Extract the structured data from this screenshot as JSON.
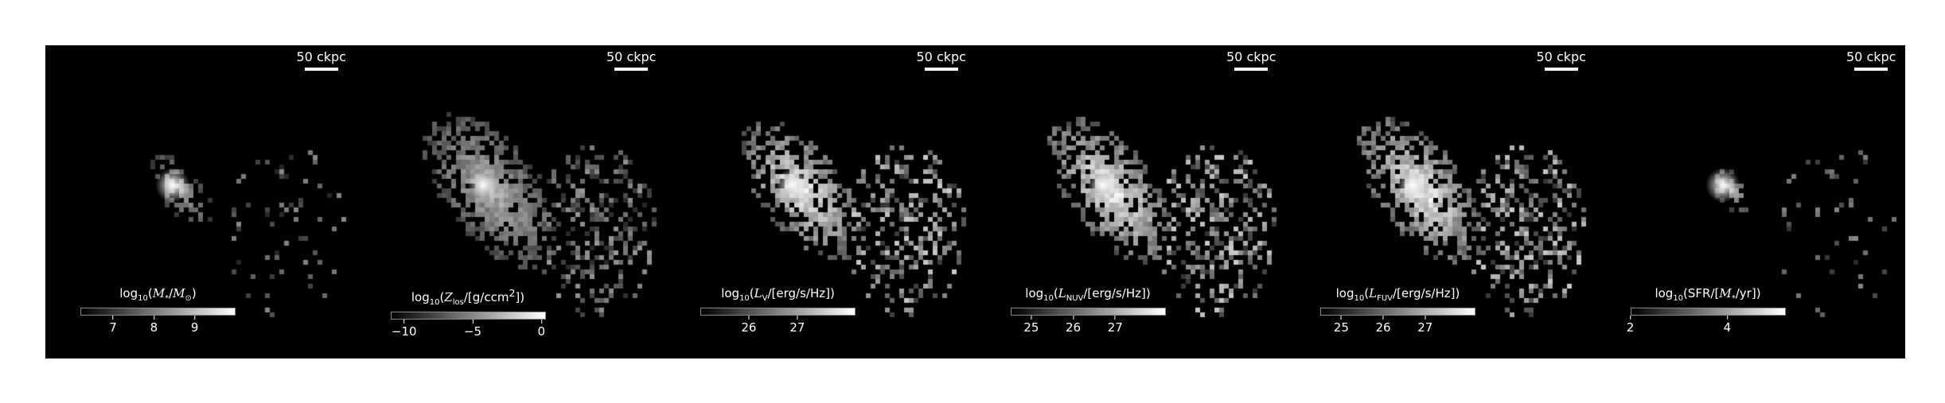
{
  "panels": [
    {
      "id": "mass",
      "scalebar": "50 ckpc",
      "cbar_title_html": "log<sub>10</sub>(<i>M</i><sub>*</sub>/<i>M</i><sub>⊙</sub>)",
      "cbar_range": [
        6.2,
        10.0
      ],
      "ticks": [
        "7",
        "8",
        "9"
      ],
      "tick_values": [
        7,
        8,
        9
      ]
    },
    {
      "id": "metallicity",
      "scalebar": "50 ckpc",
      "cbar_title_html": "log<sub>10</sub>(<i>Z</i><sub>los</sub>/[g/ccm<sup>2</sup>])",
      "cbar_range": [
        -11,
        0.3
      ],
      "ticks": [
        "−10",
        "−5",
        "0"
      ],
      "tick_values": [
        -10,
        -5,
        0
      ]
    },
    {
      "id": "lv",
      "scalebar": "50 ckpc",
      "cbar_title_html": "log<sub>10</sub>(<i>L</i><sub>V</sub>/[erg/s/Hz])",
      "cbar_range": [
        25.0,
        28.2
      ],
      "ticks": [
        "26",
        "27"
      ],
      "tick_values": [
        26,
        27
      ]
    },
    {
      "id": "lnuv",
      "scalebar": "50 ckpc",
      "cbar_title_html": "log<sub>10</sub>(<i>L</i><sub>NUV</sub>/[erg/s/Hz])",
      "cbar_range": [
        24.5,
        28.2
      ],
      "ticks": [
        "25",
        "26",
        "27"
      ],
      "tick_values": [
        25,
        26,
        27
      ]
    },
    {
      "id": "lfuv",
      "scalebar": "50 ckpc",
      "cbar_title_html": "log<sub>10</sub>(<i>L</i><sub>FUV</sub>/[erg/s/Hz])",
      "cbar_range": [
        24.5,
        28.2
      ],
      "ticks": [
        "25",
        "26",
        "27"
      ],
      "tick_values": [
        25,
        26,
        27
      ]
    },
    {
      "id": "sfr",
      "scalebar": "50 ckpc",
      "cbar_title_html": "log<sub>10</sub>(SFR/[<i>M</i><sub>*</sub>/yr])",
      "cbar_range": [
        2.0,
        5.2
      ],
      "ticks": [
        "2",
        "4"
      ],
      "tick_values": [
        2,
        4
      ]
    }
  ]
}
